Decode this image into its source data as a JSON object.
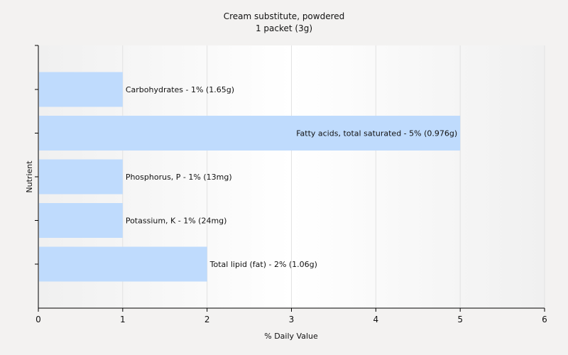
{
  "chart_data": {
    "type": "bar",
    "orientation": "horizontal",
    "title": "Cream substitute, powdered",
    "subtitle": "1 packet (3g)",
    "xlabel": "% Daily Value",
    "ylabel": "Nutrient",
    "xlim": [
      0,
      6
    ],
    "xticks": [
      "0",
      "1",
      "2",
      "3",
      "4",
      "5",
      "6"
    ],
    "grid": true,
    "bar_color": "#bfdbfd",
    "categories": [
      "Carbohydrates",
      "Fatty acids, total saturated",
      "Phosphorus, P",
      "Potassium, K",
      "Total lipid (fat)"
    ],
    "values": [
      1,
      5,
      1,
      1,
      2
    ],
    "labels": [
      "Carbohydrates - 1% (1.65g)",
      "Fatty acids, total saturated - 5% (0.976g)",
      "Phosphorus, P - 1% (13mg)",
      "Potassium, K - 1% (24mg)",
      "Total lipid (fat) - 2% (1.06g)"
    ]
  }
}
